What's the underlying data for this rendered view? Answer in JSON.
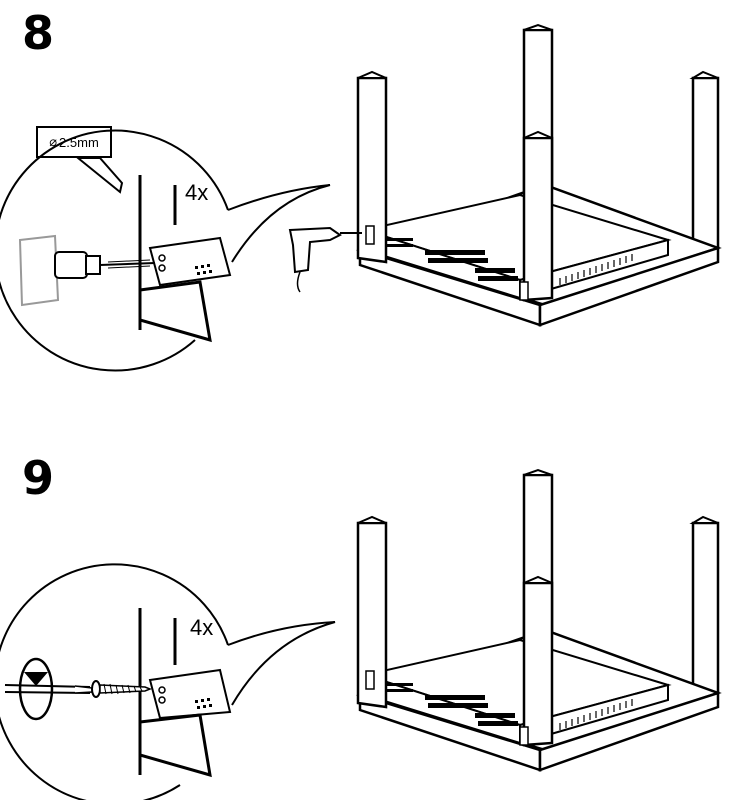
{
  "steps": [
    {
      "number": "8",
      "drill_size": "2.5mm",
      "drill_symbol": "⌀",
      "count": "4x",
      "tool_icon": "power-drill-icon",
      "action": "drill pilot holes"
    },
    {
      "number": "9",
      "count": "4x",
      "tool_icon": "screw-icon",
      "rotation_icon": "clockwise-rotation-icon",
      "action": "drive screws"
    }
  ],
  "colors": {
    "line": "#000000",
    "background": "#ffffff",
    "hidden": "#9a9a9a"
  }
}
